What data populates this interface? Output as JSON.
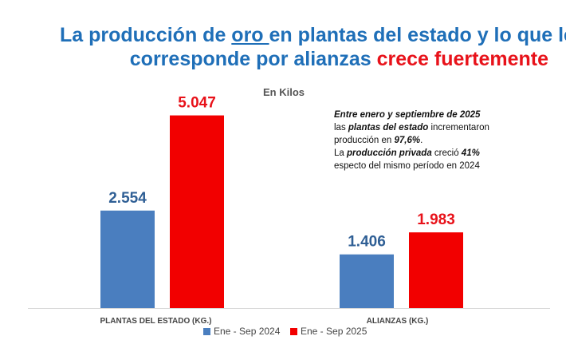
{
  "title": {
    "line1_a": "La producción de ",
    "line1_u": "oro ",
    "line1_b": "en plantas del estado y lo que le",
    "line2_a": "corresponde por alianzas ",
    "line2_red": "crece fuertemente"
  },
  "subtitle": "En Kilos",
  "note": {
    "l1": "Entre enero y septiembre de 2025",
    "l2_a": "las ",
    "l2_b": "plantas del estado",
    "l2_c": " incrementaron",
    "l3_a": "producción en ",
    "l3_b": "97,6%",
    "l3_c": ".",
    "l4_a": "La ",
    "l4_b": "producción privada",
    "l4_c": " creció ",
    "l4_d": "41%",
    "l5": "especto del mismo período en 2024"
  },
  "chart_data": {
    "type": "bar",
    "categories": [
      "PLANTAS DEL ESTADO (KG.)",
      "ALIANZAS (KG.)"
    ],
    "series": [
      {
        "name": "Ene - Sep 2024",
        "values": [
          2554,
          1406
        ],
        "labels": [
          "2.554",
          "1.406"
        ],
        "color": "#4a7ebf"
      },
      {
        "name": "Ene - Sep 2025",
        "values": [
          5047,
          1983
        ],
        "labels": [
          "5.047",
          "1.983"
        ],
        "color": "#f20000"
      }
    ],
    "ylim": [
      0,
      6000
    ],
    "legend": "bottom",
    "grid": false
  }
}
